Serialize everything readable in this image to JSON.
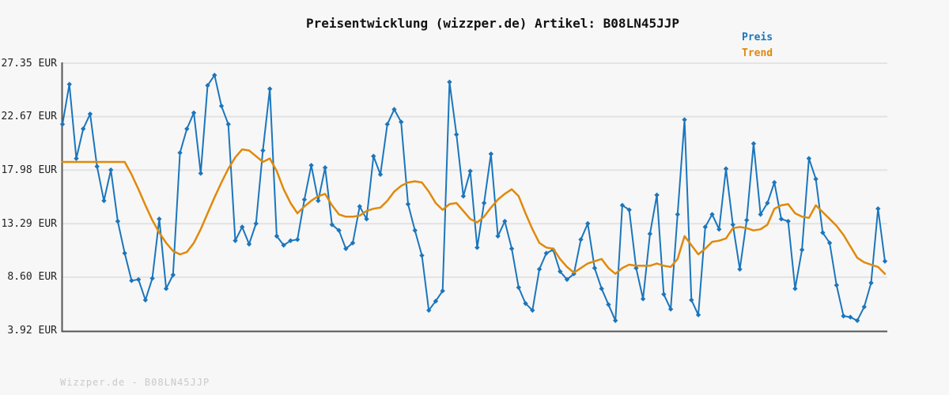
{
  "title": "Preisentwicklung (wizzper.de) Artikel: B08LN45JJP",
  "legend": {
    "preis": "Preis",
    "trend": "Trend"
  },
  "watermark": "Wizzper.de - B08LN45JJP",
  "colors": {
    "preis": "#1b76bc",
    "trend": "#e1890a",
    "grid": "#e3e3e3",
    "spine": "#555555",
    "background": "#f7f7f7",
    "tick_label": "#222222",
    "watermark": "#c9c9c9"
  },
  "chart_data": {
    "type": "line",
    "title": "Preisentwicklung (wizzper.de) Artikel: B08LN45JJP",
    "xlabel": "",
    "ylabel": "EUR",
    "ylim": [
      3.92,
      27.35
    ],
    "grid": "horizontal",
    "legend_position": "top-right-above-plot",
    "yticks": [
      {
        "label": "27.35 EUR",
        "value": 27.35
      },
      {
        "label": "22.67 EUR",
        "value": 22.67
      },
      {
        "label": "17.98 EUR",
        "value": 17.98
      },
      {
        "label": "13.29 EUR",
        "value": 13.29
      },
      {
        "label": "8.60 EUR",
        "value": 8.6
      },
      {
        "label": "3.92 EUR",
        "value": 3.92
      }
    ],
    "series": [
      {
        "name": "Preis",
        "color": "#1b76bc",
        "marker": "diamond",
        "line_width": 2,
        "values": [
          22.0,
          25.5,
          19.0,
          21.6,
          22.9,
          18.3,
          15.3,
          18.0,
          13.5,
          10.7,
          8.3,
          8.4,
          6.6,
          8.5,
          13.7,
          7.6,
          8.8,
          19.5,
          21.6,
          23.0,
          17.7,
          25.4,
          26.3,
          23.6,
          22.0,
          11.8,
          13.0,
          11.5,
          13.3,
          19.7,
          25.1,
          12.2,
          11.4,
          11.8,
          11.9,
          15.4,
          18.4,
          15.3,
          18.2,
          13.2,
          12.7,
          11.1,
          11.6,
          14.8,
          13.7,
          19.2,
          17.6,
          22.0,
          23.3,
          22.2,
          15.0,
          12.7,
          10.5,
          5.7,
          6.5,
          7.4,
          25.7,
          21.1,
          15.7,
          17.9,
          11.2,
          15.1,
          19.4,
          12.2,
          13.5,
          11.1,
          7.7,
          6.3,
          5.7,
          9.3,
          10.7,
          11.0,
          9.1,
          8.4,
          8.9,
          11.9,
          13.3,
          9.4,
          7.6,
          6.2,
          4.8,
          14.9,
          14.5,
          9.4,
          6.7,
          12.4,
          15.8,
          7.1,
          5.8,
          14.1,
          22.4,
          6.6,
          5.3,
          13.0,
          14.1,
          12.8,
          18.1,
          13.2,
          9.3,
          13.6,
          20.3,
          14.1,
          15.1,
          16.9,
          13.7,
          13.5,
          7.6,
          11.0,
          19.0,
          17.2,
          12.5,
          11.6,
          7.9,
          5.2,
          5.1,
          4.8,
          6.0,
          8.1,
          14.6,
          10.0
        ]
      },
      {
        "name": "Trend",
        "color": "#e1890a",
        "marker": "none",
        "line_width": 2.5,
        "values": [
          18.7,
          18.7,
          18.7,
          18.7,
          18.7,
          18.7,
          18.7,
          18.7,
          18.7,
          18.7,
          17.6,
          16.3,
          14.9,
          13.6,
          12.5,
          11.6,
          10.9,
          10.6,
          10.8,
          11.6,
          12.8,
          14.2,
          15.6,
          16.9,
          18.1,
          19.1,
          19.8,
          19.7,
          19.2,
          18.7,
          19.0,
          17.9,
          16.3,
          15.1,
          14.2,
          14.8,
          15.3,
          15.7,
          15.9,
          14.9,
          14.1,
          13.9,
          13.9,
          14.0,
          14.4,
          14.6,
          14.7,
          15.3,
          16.1,
          16.6,
          16.9,
          17.0,
          16.9,
          16.1,
          15.1,
          14.5,
          15.0,
          15.1,
          14.4,
          13.7,
          13.4,
          13.9,
          14.7,
          15.4,
          15.9,
          16.3,
          15.7,
          14.2,
          12.8,
          11.6,
          11.2,
          11.1,
          10.2,
          9.5,
          9.0,
          9.4,
          9.8,
          10.0,
          10.2,
          9.4,
          8.9,
          9.4,
          9.7,
          9.6,
          9.6,
          9.6,
          9.8,
          9.6,
          9.5,
          10.2,
          12.2,
          11.4,
          10.6,
          11.1,
          11.7,
          11.8,
          12.0,
          12.9,
          13.0,
          12.9,
          12.7,
          12.8,
          13.2,
          14.6,
          14.9,
          15.0,
          14.2,
          13.9,
          13.8,
          14.9,
          14.3,
          13.7,
          13.1,
          12.3,
          11.3,
          10.3,
          9.9,
          9.7,
          9.5,
          8.9
        ]
      }
    ]
  }
}
